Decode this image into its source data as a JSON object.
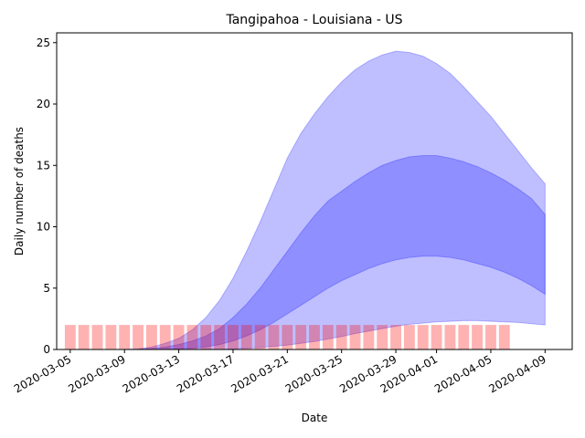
{
  "chart_data": {
    "type": "area",
    "title": "Tangipahoa - Louisiana - US",
    "xlabel": "Date",
    "ylabel": "Daily number of deaths",
    "x_start": "2020-03-05",
    "x_end": "2020-04-09",
    "xlim": [
      "2020-03-04",
      "2020-04-11"
    ],
    "ylim": [
      0,
      25.8
    ],
    "y_ticks": [
      0,
      5,
      10,
      15,
      20,
      25
    ],
    "x_ticks": [
      "2020-03-05",
      "2020-03-09",
      "2020-03-13",
      "2020-03-17",
      "2020-03-21",
      "2020-03-25",
      "2020-03-29",
      "2020-04-01",
      "2020-04-05",
      "2020-04-09"
    ],
    "grid": false,
    "colors": {
      "band": "#0000ff",
      "bars": "#ff0000"
    },
    "bars": {
      "name": "observed",
      "start": "2020-03-05",
      "values": [
        2,
        2,
        2,
        2,
        2,
        2,
        2,
        2,
        2,
        2,
        2,
        2,
        2,
        2,
        2,
        2,
        2,
        2,
        2,
        2,
        2,
        2,
        2,
        2,
        2,
        2,
        2,
        2,
        2,
        2,
        2,
        2,
        2
      ]
    },
    "bands": [
      {
        "name": "outer",
        "points": [
          {
            "x": "2020-03-05",
            "lo": 0,
            "hi": 0
          },
          {
            "x": "2020-03-06",
            "lo": 0,
            "hi": 0
          },
          {
            "x": "2020-03-07",
            "lo": 0,
            "hi": 0
          },
          {
            "x": "2020-03-08",
            "lo": 0,
            "hi": 0
          },
          {
            "x": "2020-03-09",
            "lo": 0,
            "hi": 0
          },
          {
            "x": "2020-03-10",
            "lo": 0,
            "hi": 0.05
          },
          {
            "x": "2020-03-11",
            "lo": 0,
            "hi": 0.2
          },
          {
            "x": "2020-03-12",
            "lo": 0,
            "hi": 0.5
          },
          {
            "x": "2020-03-13",
            "lo": 0,
            "hi": 0.9
          },
          {
            "x": "2020-03-14",
            "lo": 0,
            "hi": 1.6
          },
          {
            "x": "2020-03-15",
            "lo": 0,
            "hi": 2.6
          },
          {
            "x": "2020-03-16",
            "lo": 0,
            "hi": 4.0
          },
          {
            "x": "2020-03-17",
            "lo": 0.05,
            "hi": 5.8
          },
          {
            "x": "2020-03-18",
            "lo": 0.1,
            "hi": 8.0
          },
          {
            "x": "2020-03-19",
            "lo": 0.15,
            "hi": 10.4
          },
          {
            "x": "2020-03-20",
            "lo": 0.25,
            "hi": 13.0
          },
          {
            "x": "2020-03-21",
            "lo": 0.35,
            "hi": 15.6
          },
          {
            "x": "2020-03-22",
            "lo": 0.5,
            "hi": 17.6
          },
          {
            "x": "2020-03-23",
            "lo": 0.65,
            "hi": 19.2
          },
          {
            "x": "2020-03-24",
            "lo": 0.85,
            "hi": 20.6
          },
          {
            "x": "2020-03-25",
            "lo": 1.05,
            "hi": 21.8
          },
          {
            "x": "2020-03-26",
            "lo": 1.3,
            "hi": 22.8
          },
          {
            "x": "2020-03-27",
            "lo": 1.5,
            "hi": 23.5
          },
          {
            "x": "2020-03-28",
            "lo": 1.7,
            "hi": 24.0
          },
          {
            "x": "2020-03-29",
            "lo": 1.9,
            "hi": 24.3
          },
          {
            "x": "2020-03-30",
            "lo": 2.05,
            "hi": 24.2
          },
          {
            "x": "2020-03-31",
            "lo": 2.15,
            "hi": 23.9
          },
          {
            "x": "2020-04-01",
            "lo": 2.25,
            "hi": 23.3
          },
          {
            "x": "2020-04-02",
            "lo": 2.3,
            "hi": 22.5
          },
          {
            "x": "2020-04-03",
            "lo": 2.35,
            "hi": 21.4
          },
          {
            "x": "2020-04-04",
            "lo": 2.35,
            "hi": 20.2
          },
          {
            "x": "2020-04-05",
            "lo": 2.3,
            "hi": 19.0
          },
          {
            "x": "2020-04-06",
            "lo": 2.25,
            "hi": 17.6
          },
          {
            "x": "2020-04-07",
            "lo": 2.2,
            "hi": 16.2
          },
          {
            "x": "2020-04-08",
            "lo": 2.1,
            "hi": 14.8
          },
          {
            "x": "2020-04-09",
            "lo": 2.0,
            "hi": 13.5
          }
        ]
      },
      {
        "name": "inner",
        "points": [
          {
            "x": "2020-03-05",
            "lo": 0,
            "hi": 0
          },
          {
            "x": "2020-03-06",
            "lo": 0,
            "hi": 0
          },
          {
            "x": "2020-03-07",
            "lo": 0,
            "hi": 0
          },
          {
            "x": "2020-03-08",
            "lo": 0,
            "hi": 0
          },
          {
            "x": "2020-03-09",
            "lo": 0,
            "hi": 0
          },
          {
            "x": "2020-03-10",
            "lo": 0,
            "hi": 0.02
          },
          {
            "x": "2020-03-11",
            "lo": 0,
            "hi": 0.08
          },
          {
            "x": "2020-03-12",
            "lo": 0.02,
            "hi": 0.2
          },
          {
            "x": "2020-03-13",
            "lo": 0.05,
            "hi": 0.4
          },
          {
            "x": "2020-03-14",
            "lo": 0.1,
            "hi": 0.7
          },
          {
            "x": "2020-03-15",
            "lo": 0.2,
            "hi": 1.1
          },
          {
            "x": "2020-03-16",
            "lo": 0.4,
            "hi": 1.7
          },
          {
            "x": "2020-03-17",
            "lo": 0.7,
            "hi": 2.6
          },
          {
            "x": "2020-03-18",
            "lo": 1.1,
            "hi": 3.7
          },
          {
            "x": "2020-03-19",
            "lo": 1.6,
            "hi": 5.0
          },
          {
            "x": "2020-03-20",
            "lo": 2.2,
            "hi": 6.5
          },
          {
            "x": "2020-03-21",
            "lo": 2.9,
            "hi": 8.0
          },
          {
            "x": "2020-03-22",
            "lo": 3.6,
            "hi": 9.5
          },
          {
            "x": "2020-03-23",
            "lo": 4.3,
            "hi": 10.9
          },
          {
            "x": "2020-03-24",
            "lo": 5.0,
            "hi": 12.1
          },
          {
            "x": "2020-03-25",
            "lo": 5.6,
            "hi": 12.9
          },
          {
            "x": "2020-03-26",
            "lo": 6.1,
            "hi": 13.7
          },
          {
            "x": "2020-03-27",
            "lo": 6.6,
            "hi": 14.4
          },
          {
            "x": "2020-03-28",
            "lo": 7.0,
            "hi": 15.0
          },
          {
            "x": "2020-03-29",
            "lo": 7.3,
            "hi": 15.4
          },
          {
            "x": "2020-03-30",
            "lo": 7.5,
            "hi": 15.7
          },
          {
            "x": "2020-03-31",
            "lo": 7.6,
            "hi": 15.8
          },
          {
            "x": "2020-04-01",
            "lo": 7.6,
            "hi": 15.8
          },
          {
            "x": "2020-04-02",
            "lo": 7.5,
            "hi": 15.6
          },
          {
            "x": "2020-04-03",
            "lo": 7.3,
            "hi": 15.3
          },
          {
            "x": "2020-04-04",
            "lo": 7.0,
            "hi": 14.9
          },
          {
            "x": "2020-04-05",
            "lo": 6.7,
            "hi": 14.4
          },
          {
            "x": "2020-04-06",
            "lo": 6.3,
            "hi": 13.8
          },
          {
            "x": "2020-04-07",
            "lo": 5.8,
            "hi": 13.1
          },
          {
            "x": "2020-04-08",
            "lo": 5.2,
            "hi": 12.3
          },
          {
            "x": "2020-04-09",
            "lo": 4.5,
            "hi": 11.0
          }
        ]
      }
    ]
  }
}
